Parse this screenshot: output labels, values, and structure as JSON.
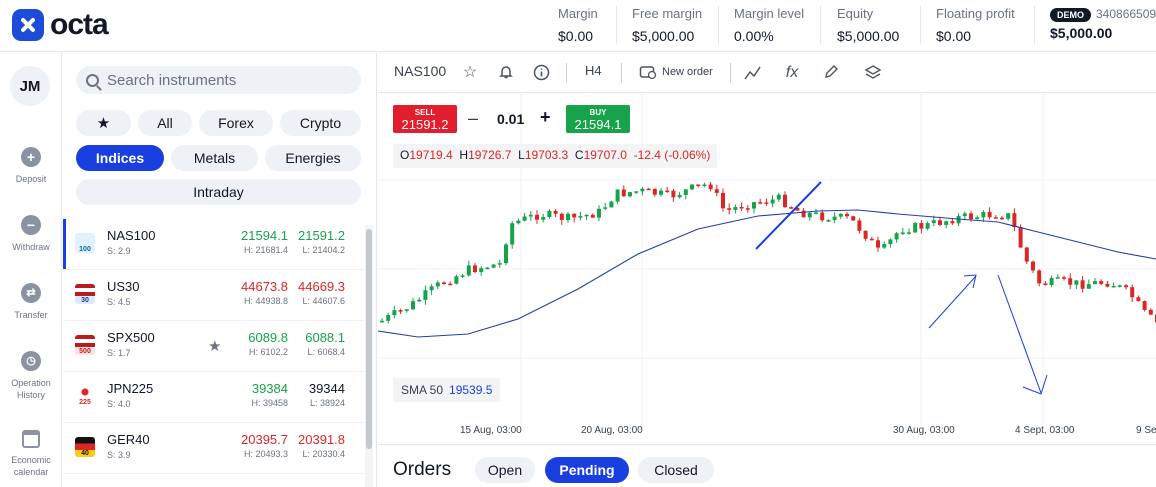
{
  "brand": {
    "name": "octa"
  },
  "header": {
    "stats": [
      {
        "label": "Margin",
        "value": "$0.00"
      },
      {
        "label": "Free margin",
        "value": "$5,000.00"
      },
      {
        "label": "Margin level",
        "value": "0.00%"
      },
      {
        "label": "Equity",
        "value": "$5,000.00"
      },
      {
        "label": "Floating profit",
        "value": "$0.00"
      }
    ],
    "account": {
      "badge": "DEMO",
      "number": "340866509",
      "balance": "$5,000.00"
    }
  },
  "rail": {
    "avatar": "JM",
    "items": [
      {
        "label": "Deposit",
        "icon": "plus-icon"
      },
      {
        "label": "Withdraw",
        "icon": "minus-icon"
      },
      {
        "label": "Transfer",
        "icon": "transfer-icon"
      },
      {
        "label": "Operation History",
        "icon": "clock-icon"
      },
      {
        "label": "Economic calendar",
        "icon": "calendar-icon"
      }
    ]
  },
  "panel": {
    "search_placeholder": "Search instruments",
    "filters": {
      "all": "All",
      "forex": "Forex",
      "crypto": "Crypto",
      "indices": "Indices",
      "metals": "Metals",
      "energies": "Energies",
      "intraday": "Intraday"
    },
    "instruments": [
      {
        "name": "NAS100",
        "spread": "S: 2.9",
        "bid": "21594.1",
        "ask": "21591.2",
        "high": "H: 21681.4",
        "low": "L: 21404.2",
        "trend": "up",
        "flag_text": "100",
        "flag_color": "#0ea5e9"
      },
      {
        "name": "US30",
        "spread": "S: 4.5",
        "bid": "44673.8",
        "ask": "44669.3",
        "high": "H: 44938.8",
        "low": "L: 44607.6",
        "trend": "down",
        "flag_text": "30",
        "flag_color": "#1e3a8a"
      },
      {
        "name": "SPX500",
        "spread": "S: 1.7",
        "bid": "6089.8",
        "ask": "6088.1",
        "high": "H: 6102.2",
        "low": "L: 6068.4",
        "trend": "up",
        "flag_text": "500",
        "flag_color": "#b91c1c"
      },
      {
        "name": "JPN225",
        "spread": "S: 4.0",
        "bid": "39384",
        "ask": "39344",
        "high": "H: 39458",
        "low": "L: 38924",
        "trend": "mixed",
        "flag_text": "225",
        "flag_color": "#dc2626"
      },
      {
        "name": "GER40",
        "spread": "S: 3.9",
        "bid": "20395.7",
        "ask": "20391.8",
        "high": "H: 20493.3",
        "low": "L: 20330.4",
        "trend": "down",
        "flag_text": "40",
        "flag_color": "#facc15"
      }
    ]
  },
  "toolbar": {
    "symbol": "NAS100",
    "timeframe": "H4",
    "new_order": "New order"
  },
  "trade": {
    "sell_label": "SELL",
    "sell_price": "21591.2",
    "buy_label": "BUY",
    "buy_price": "21594.1",
    "lot": "0.01",
    "minus": "–",
    "plus": "+"
  },
  "ohlc": {
    "o_label": "O",
    "o": "19719.4",
    "h_label": "H",
    "h": "19726.7",
    "l_label": "L",
    "l": "19703.3",
    "c_label": "C",
    "c": "19707.0",
    "change": "-12.4 (-0.06%)"
  },
  "indicator": {
    "name": "SMA 50",
    "value": "19539.5"
  },
  "x_axis": [
    "15 Aug, 03:00",
    "20 Aug, 03:00",
    "30 Aug, 03:00",
    "4 Sept, 03:00",
    "9 Se"
  ],
  "orders": {
    "title": "Orders",
    "tabs": [
      "Open",
      "Pending",
      "Closed"
    ],
    "active_tab": "Pending"
  },
  "colors": {
    "accent": "#1a3fe0",
    "up": "#16a34a",
    "down": "#dc2626"
  }
}
